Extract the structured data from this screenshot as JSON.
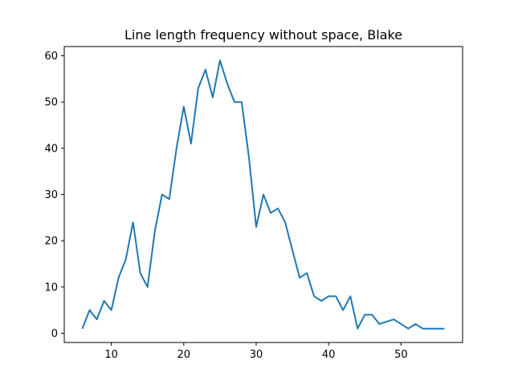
{
  "chart_data": {
    "type": "line",
    "title": "Line length frequency without space, Blake",
    "xlabel": "",
    "ylabel": "",
    "xlim": [
      3.5,
      58.5
    ],
    "ylim": [
      -2,
      62
    ],
    "xticks": [
      10,
      20,
      30,
      40,
      50
    ],
    "yticks": [
      0,
      10,
      20,
      30,
      40,
      50,
      60
    ],
    "grid": false,
    "line_color": "#1f77b4",
    "x": [
      6,
      7,
      8,
      9,
      10,
      11,
      12,
      13,
      14,
      15,
      16,
      17,
      18,
      19,
      20,
      21,
      22,
      23,
      24,
      25,
      26,
      27,
      28,
      29,
      30,
      31,
      32,
      33,
      34,
      35,
      36,
      37,
      38,
      39,
      40,
      41,
      42,
      43,
      44,
      45,
      46,
      47,
      49,
      51,
      52,
      53,
      56
    ],
    "y": [
      1,
      5,
      3,
      7,
      5,
      12,
      16,
      24,
      13,
      10,
      22,
      30,
      29,
      40,
      49,
      41,
      53,
      57,
      51,
      59,
      54,
      50,
      50,
      38,
      23,
      30,
      26,
      27,
      24,
      18,
      12,
      13,
      8,
      7,
      8,
      8,
      5,
      8,
      1,
      4,
      4,
      2,
      3,
      1,
      2,
      1,
      1
    ]
  }
}
